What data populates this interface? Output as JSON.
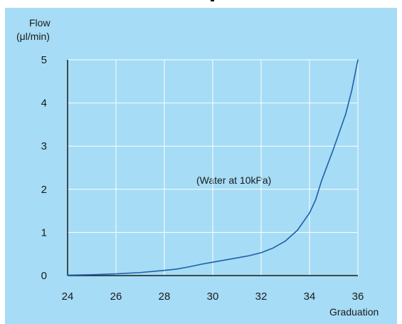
{
  "colors": {
    "background": "#a6dcf5",
    "plot_background": "#a6dcf5",
    "grid": "#ffffff",
    "axis": "#1a1a1a",
    "curve": "#1f5fa8",
    "text": "#1a1a1a"
  },
  "chart_data": {
    "type": "line",
    "title": "",
    "ylabel": [
      "Flow",
      "(μl/min)"
    ],
    "xlabel": "Graduation",
    "annotation": "(Water at 10kPa)",
    "xlim": [
      24,
      36
    ],
    "ylim": [
      0,
      5
    ],
    "x_ticks": [
      24,
      26,
      28,
      30,
      32,
      34,
      36
    ],
    "y_ticks": [
      0,
      1,
      2,
      3,
      4,
      5
    ],
    "grid": true,
    "series": [
      {
        "x": [
          24,
          25,
          26,
          27,
          28,
          28.5,
          29,
          29.5,
          30,
          30.5,
          31,
          31.5,
          32,
          32.5,
          33,
          33.5,
          34,
          34.25,
          34.5,
          35,
          35.5,
          35.75,
          36
        ],
        "y": [
          0.01,
          0.02,
          0.04,
          0.07,
          0.12,
          0.15,
          0.2,
          0.26,
          0.31,
          0.36,
          0.41,
          0.46,
          0.53,
          0.64,
          0.8,
          1.05,
          1.45,
          1.75,
          2.2,
          2.95,
          3.75,
          4.3,
          5.0
        ]
      }
    ]
  }
}
